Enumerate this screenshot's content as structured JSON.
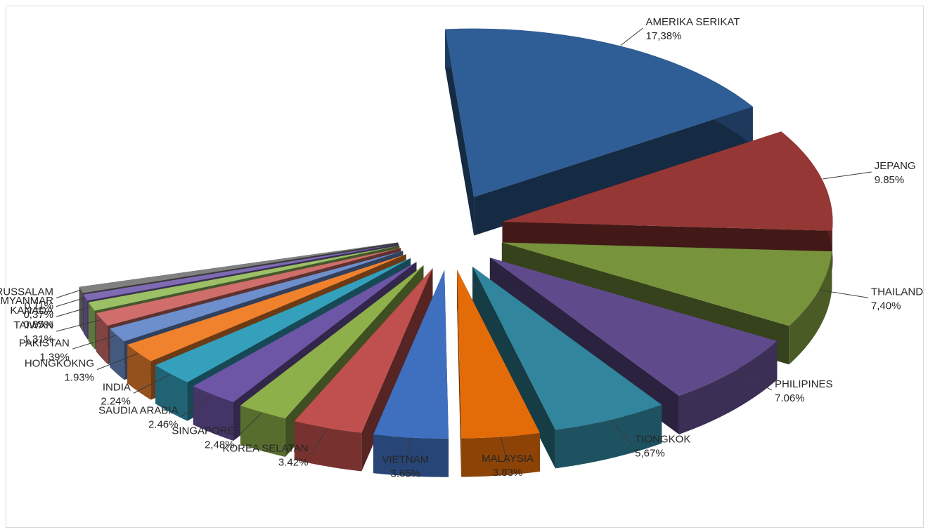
{
  "chart_data": {
    "type": "pie",
    "style": "3d-exploded",
    "categories": [
      "AMERIKA SERIKAT",
      "JEPANG",
      "THAILAND",
      "PHILIPINES",
      "TIONGKOK",
      "MALAYSIA",
      "VIETNAM",
      "KOREA SELATAN",
      "SINGAPORE",
      "SAUDIA ARABIA",
      "INDIA",
      "HONGKOKNG",
      "PAKISTAN",
      "TAIWAN",
      "KANADA",
      "MYANMAR",
      "BRUNEI DARUSSALAM"
    ],
    "values": [
      17.38,
      9.85,
      7.4,
      7.06,
      5.67,
      3.83,
      3.65,
      3.42,
      2.48,
      2.46,
      2.24,
      1.93,
      1.39,
      1.31,
      0.85,
      0.37,
      0.11
    ],
    "value_labels": [
      "17,38%",
      "9.85%",
      "7,40%",
      "7.06%",
      "5,67%",
      "3.83%",
      "3.65%",
      "3.42%",
      "2,48%",
      "2.46%",
      "2.24%",
      "1.93%",
      "1.39%",
      "1,31%",
      "0.85%",
      "0,37%",
      "0,11%"
    ],
    "colors": [
      "#2f5d95",
      "#953735",
      "#77933c",
      "#5f4b8b",
      "#31859c",
      "#e36c09",
      "#3f6fbf",
      "#c0504d",
      "#8db04a",
      "#6e56a6",
      "#34a0bc",
      "#f0822e",
      "#6d8fcc",
      "#cf6e6a",
      "#9bc066",
      "#7f6ab4",
      "#808080"
    ],
    "legend": "none"
  }
}
